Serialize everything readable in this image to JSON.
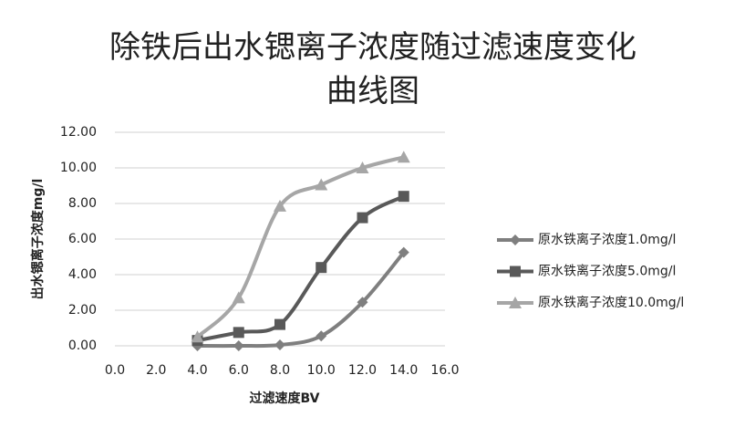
{
  "chart_data": {
    "type": "line",
    "title": "除铁后出水锶离子浓度随过滤速度变化曲线图",
    "x_label": "过滤速度BV",
    "y_label": "出水锶离子浓度mg/l",
    "x": [
      4,
      6,
      8,
      10,
      12,
      14
    ],
    "series": [
      {
        "name": "原水铁离子浓度1.0mg/l",
        "color": "#7f7f7f",
        "marker": "diamond",
        "values": [
          0,
          0,
          0.05,
          0.55,
          2.45,
          5.25
        ]
      },
      {
        "name": "原水铁离子浓度5.0mg/l",
        "color": "#595959",
        "marker": "square",
        "values": [
          0.3,
          0.75,
          1.2,
          4.4,
          7.2,
          8.4
        ]
      },
      {
        "name": "原水铁离子浓度10.0mg/l",
        "color": "#a6a6a6",
        "marker": "triangle",
        "values": [
          0.5,
          2.7,
          7.85,
          9.05,
          10.0,
          10.6
        ]
      }
    ],
    "xlim": [
      0,
      16
    ],
    "xticks": [
      {
        "value": 0,
        "label": "0.0"
      },
      {
        "value": 2,
        "label": "2.0"
      },
      {
        "value": 4,
        "label": "4.0"
      },
      {
        "value": 6,
        "label": "6.0"
      },
      {
        "value": 8,
        "label": "8.0"
      },
      {
        "value": 10,
        "label": "10.0"
      },
      {
        "value": 12,
        "label": "12.0"
      },
      {
        "value": 14,
        "label": "14.0"
      },
      {
        "value": 16,
        "label": "16.0"
      }
    ],
    "ylim": [
      0,
      12
    ],
    "yticks": [
      {
        "value": 0,
        "label": "0.00"
      },
      {
        "value": 2,
        "label": "2.00"
      },
      {
        "value": 4,
        "label": "4.00"
      },
      {
        "value": 6,
        "label": "6.00"
      },
      {
        "value": 8,
        "label": "8.00"
      },
      {
        "value": 10,
        "label": "10.00"
      },
      {
        "value": 12,
        "label": "12.00"
      }
    ],
    "grid": true,
    "legend": "right"
  }
}
